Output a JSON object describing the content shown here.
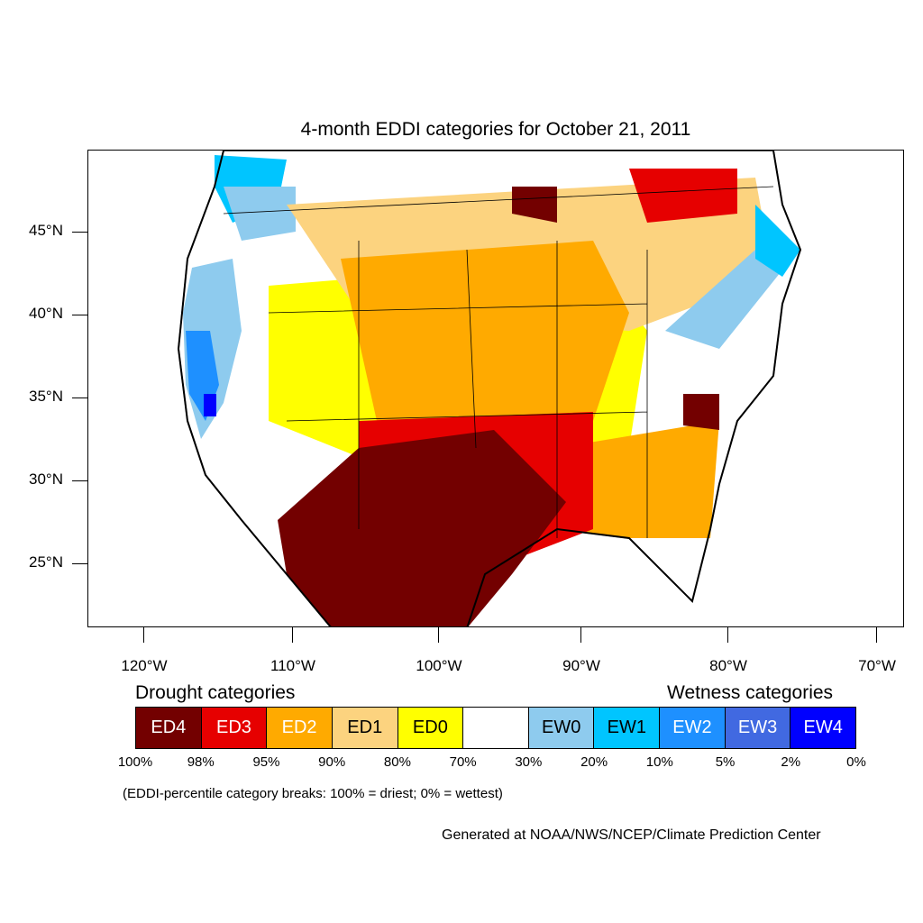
{
  "title": "4-month EDDI categories for October 21, 2011",
  "lat_labels": [
    "45°N",
    "40°N",
    "35°N",
    "30°N",
    "25°N"
  ],
  "lon_labels": [
    "120°W",
    "110°W",
    "100°W",
    "90°W",
    "80°W",
    "70°W"
  ],
  "legend": {
    "drought_title": "Drought categories",
    "wetness_title": "Wetness categories",
    "categories": [
      {
        "label": "ED4",
        "color": "#730000",
        "text_color": "#ffffff"
      },
      {
        "label": "ED3",
        "color": "#e60000",
        "text_color": "#ffffff"
      },
      {
        "label": "ED2",
        "color": "#ffaa00",
        "text_color": "#ffffff"
      },
      {
        "label": "ED1",
        "color": "#fcd37f",
        "text_color": "#000000"
      },
      {
        "label": "ED0",
        "color": "#ffff00",
        "text_color": "#000000"
      },
      {
        "label": "",
        "color": "#ffffff",
        "text_color": "#000000"
      },
      {
        "label": "EW0",
        "color": "#8ecbee",
        "text_color": "#000000"
      },
      {
        "label": "EW1",
        "color": "#00c5ff",
        "text_color": "#000000"
      },
      {
        "label": "EW2",
        "color": "#1e90ff",
        "text_color": "#ffffff"
      },
      {
        "label": "EW3",
        "color": "#4169e1",
        "text_color": "#ffffff"
      },
      {
        "label": "EW4",
        "color": "#0000ff",
        "text_color": "#ffffff"
      }
    ],
    "breaks": [
      "100%",
      "98%",
      "95%",
      "90%",
      "80%",
      "70%",
      "30%",
      "20%",
      "10%",
      "5%",
      "2%",
      "0%"
    ]
  },
  "note": "(EDDI-percentile category breaks: 100% = driest; 0% = wettest)",
  "credit": "Generated at NOAA/NWS/NCEP/Climate Prediction Center"
}
